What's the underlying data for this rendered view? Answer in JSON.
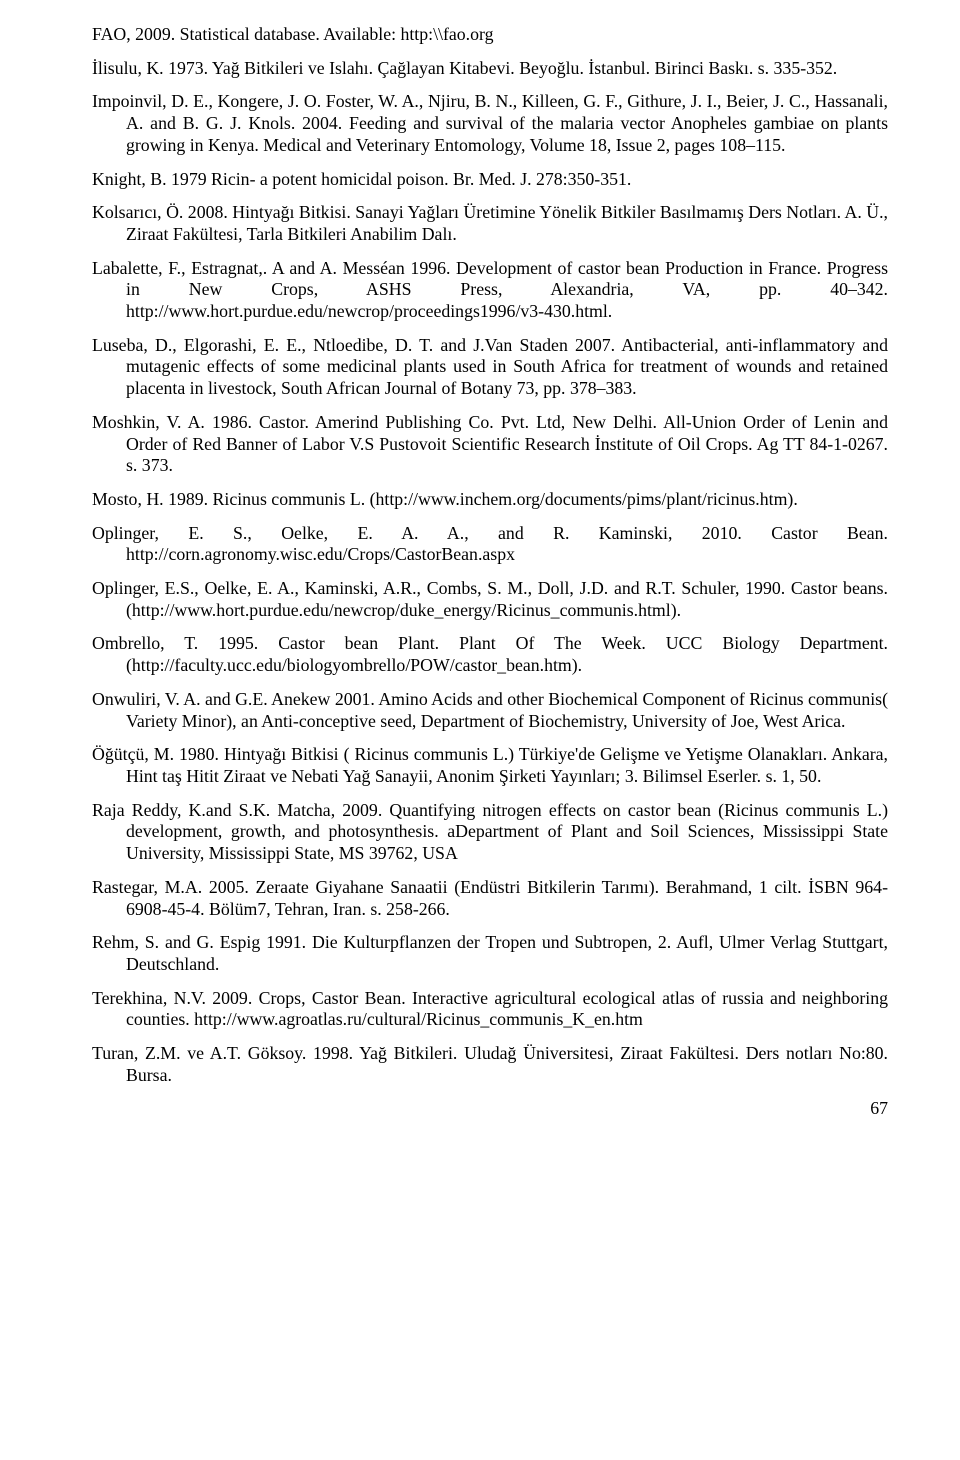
{
  "refs": [
    "FAO, 2009. Statistical database. Available: http:\\\\fao.org",
    "İlisulu, K. 1973. Yağ Bitkileri ve Islahı. Çağlayan Kitabevi. Beyoğlu. İstanbul. Birinci  Baskı. s. 335-352.",
    "Impoinvil, D. E., Kongere, J. O. Foster, W. A., Njiru, B. N.,  Killeen, G. F.,  Githure, J. I., Beier, J. C., Hassanali, A. and B. G. J. Knols. 2004. Feeding and survival of  the malaria vector Anopheles gambiae on plants growing in Kenya. Medical and  Veterinary Entomology, Volume 18, Issue 2, pages 108–115.",
    "Knight, B. 1979 Ricin- a potent homicidal poison. Br. Med. J. 278:350-351.",
    "Kolsarıcı, Ö. 2008. Hintyağı Bitkisi. Sanayi Yağları Üretimine Yönelik Bitkiler Basılmamış Ders Notları. A. Ü., Ziraat Fakültesi, Tarla Bitkileri Anabilim Dalı.",
    "Labalette, F., Estragnat,. A and A. Messéan  1996.  Development of castor bean  Production in France. Progress in New Crops, ASHS Press, Alexandria, VA, pp. 40–342. http://www.hort.purdue.edu/newcrop/proceedings1996/v3-430.html.",
    "Luseba, D., Elgorashi, E. E., Ntloedibe, D. T. and J.Van Staden 2007. Antibacterial, anti-inflammatory and mutagenic effects of some medicinal plants used in South Africa for treatment of wounds and retained placenta in livestock, South African  Journal of Botany 73, pp. 378–383.",
    "Moshkin, V. A. 1986. Castor. Amerind Publishing Co. Pvt. Ltd, New Delhi. All-Union Order of Lenin and Order of Red Banner of Labor V.S Pustovoit Scientific Research İnstitute of Oil Crops. Ag TT 84-1-0267. s. 373.",
    "Mosto, H. 1989.  Ricinus communis L. (http://www.inchem.org/documents/pims/plant/ricinus.htm).",
    "Oplinger, E. S., Oelke, E. A. A., and R. Kaminski, 2010. Castor Bean. http://corn.agronomy.wisc.edu/Crops/CastorBean.aspx",
    "Oplinger, E.S., Oelke, E. A., Kaminski, A.R., Combs, S. M., Doll, J.D. and R.T.   Schuler, 1990.   Castor  beans. (http://www.hort.purdue.edu/newcrop/duke_energy/Ricinus_communis.html).",
    "Ombrello, T. 1995. Castor bean Plant. Plant Of The Week. UCC Biology Department. (http://faculty.ucc.edu/biologyombrello/POW/castor_bean.htm).",
    "Onwuliri, V. A. and G.E. Anekew 2001. Amino Acids and other Biochemical Component of Ricinus communis( Variety Minor), an Anti-conceptive seed, Department of  Biochemistry, University of Joe,  West Arica.",
    "Öğütçü, M. 1980. Hintyağı Bitkisi ( Ricinus communis L.) Türkiye'de Gelişme ve Yetişme Olanakları. Ankara, Hint taş Hitit Ziraat ve Nebati Yağ Sanayii, Anonim Şirketi Yayınları; 3. Bilimsel Eserler. s. 1, 50.",
    "Raja Reddy, K.and S.K. Matcha,  2009. Quantifying nitrogen effects on castor bean  (Ricinus communis L.) development, growth, and photosynthesis. aDepartment  of Plant and Soil Sciences, Mississippi State University, Mississippi State, MS 39762, USA",
    "Rastegar, M.A. 2005.  Zeraate Giyahane Sanaatii (Endüstri Bitkilerin Tarımı).  Berahmand, 1 cilt. İSBN 964- 6908-45-4. Bölüm7, Tehran, Iran. s. 258-266.",
    "Rehm, S. and G. Espig  1991. Die Kulturpflanzen der Tropen und Subtropen, 2. Aufl,  Ulmer Verlag Stuttgart, Deutschland.",
    "Terekhina, N.V. 2009. Crops, Castor Bean. Interactive agricultural ecological atlas of russia and neighboring counties. http://www.agroatlas.ru/cultural/Ricinus_communis_K_en.htm",
    "Turan, Z.M. ve A.T. Göksoy. 1998. Yağ Bitkileri. Uludağ Üniversitesi, Ziraat Fakültesi. Ders notları No:80. Bursa."
  ],
  "page_number": "67"
}
